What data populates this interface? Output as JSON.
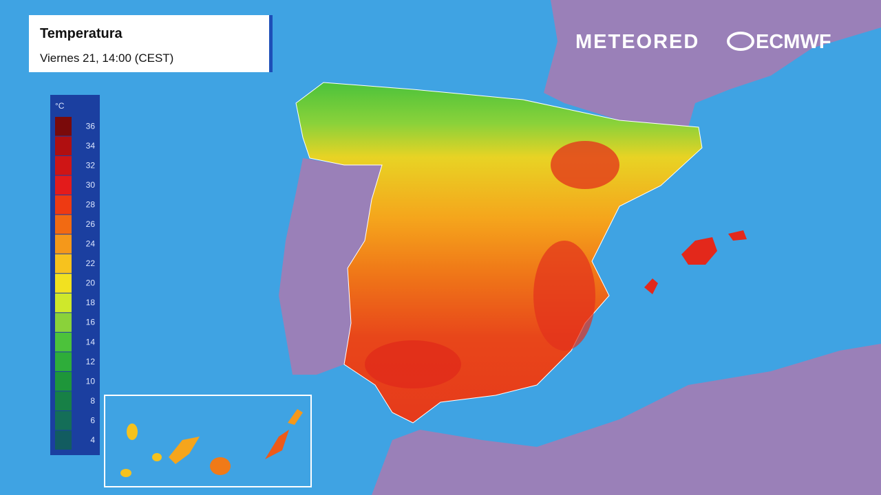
{
  "header": {
    "title": "Temperatura",
    "subtitle": "Viernes 21, 14:00 (CEST)"
  },
  "logos": {
    "brand": "METEORED",
    "partner": "ECMWF"
  },
  "legend": {
    "unit": "°C",
    "ticks": [
      36,
      34,
      32,
      30,
      28,
      26,
      24,
      22,
      20,
      18,
      16,
      14,
      12,
      10,
      8,
      6,
      4
    ],
    "colors": [
      "#7a0a0a",
      "#b00f10",
      "#cf1515",
      "#e31b1b",
      "#ee3a12",
      "#f26a12",
      "#f5981a",
      "#f7c21e",
      "#f2e120",
      "#cfe82b",
      "#8ad23a",
      "#4cc23b",
      "#2ead3a",
      "#1e963a",
      "#178046",
      "#146e58",
      "#125c60"
    ]
  }
}
